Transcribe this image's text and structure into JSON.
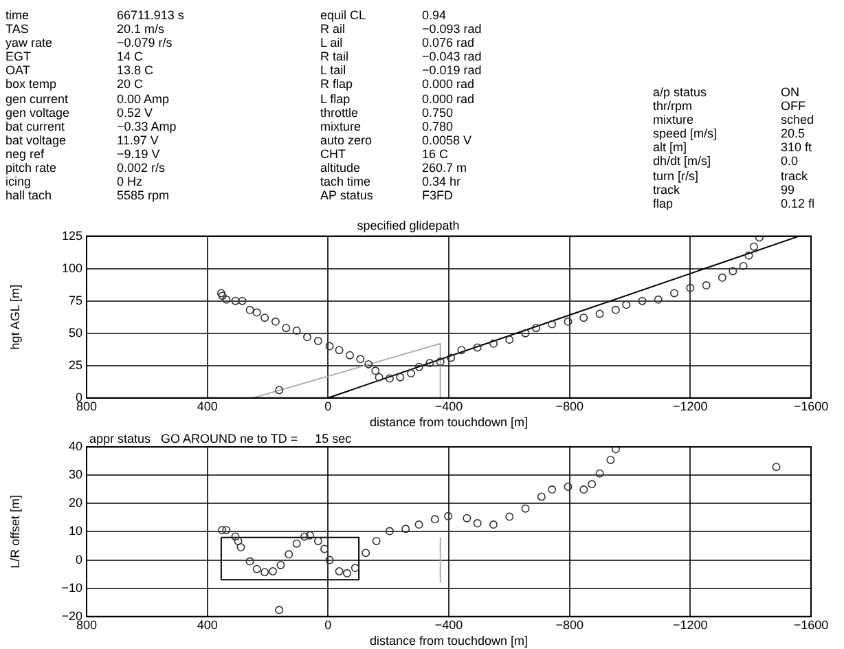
{
  "chart_data": [
    {
      "type": "other",
      "annotations": [
        "time",
        "66711.913 s",
        "TAS",
        "20.1 m/s",
        "yaw rate",
        "−0.079 r/s",
        "EGT",
        "14 C",
        "OAT",
        "13.8 C",
        "box temp",
        "20 C",
        "gen current",
        "0.00 Amp",
        "gen voltage",
        "0.52 V",
        "bat current",
        "−0.33 Amp",
        "bat voltage",
        "11.97 V",
        "neg ref",
        "−9.19 V",
        "pitch rate",
        "0.002 r/s",
        "icing",
        "0 Hz",
        "hall tach",
        "5585 rpm"
      ]
    },
    {
      "type": "other",
      "annotations": [
        "equil CL",
        "0.94",
        "R ail",
        "−0.093 rad",
        "L ail",
        "0.076 rad",
        "R tail",
        "−0.043 rad",
        "L tail",
        "−0.019 rad",
        "R flap",
        "0.000 rad",
        "L flap",
        "0.000 rad",
        "throttle",
        "0.750",
        "mixture",
        "0.780",
        "auto zero",
        "0.0058 V",
        "CHT",
        "16 C",
        "altitude",
        "260.7 m",
        "tach time",
        "0.34 hr",
        "AP status",
        "F3FD"
      ]
    },
    {
      "type": "other",
      "annotations": [
        "a/p status",
        "ON",
        "thr/rpm",
        "OFF",
        "mixture",
        "sched",
        "speed [m/s]",
        "20.5",
        "alt [m]",
        "310 ft",
        "dh/dt [m/s]",
        "0.0",
        "turn [r/s]",
        "track",
        "track",
        "99",
        "flap",
        "0.12 fl"
      ]
    },
    {
      "type": "scatter",
      "title": "specified glidepath",
      "xlabel": "distance from touchdown [m]",
      "ylabel": "hgt AGL [m]",
      "xlim": [
        800,
        -1600
      ],
      "xticks": [
        800,
        400,
        0,
        -400,
        -800,
        -1200,
        -1600
      ],
      "ylim": [
        0,
        125
      ],
      "yticks": [
        0,
        25,
        50,
        75,
        100,
        125
      ],
      "grid": true,
      "legend": false,
      "series": [
        {
          "type": "scatter",
          "marker": "circle",
          "color": "#333333",
          "x": [
            354,
            350,
            337,
            307,
            284,
            259,
            236,
            210,
            174,
            139,
            104,
            69,
            33,
            -5,
            -37,
            -72,
            -107,
            -134,
            -157,
            -169,
            -204,
            -239,
            -275,
            -301,
            -337,
            -372,
            -407,
            -442,
            -495,
            -548,
            -601,
            -654,
            -689,
            -742,
            -795,
            -847,
            -900,
            -953,
            -988,
            -1041,
            -1094,
            -1147,
            -1200,
            -1253,
            -1306,
            -1341,
            -1376,
            -1394,
            -1411,
            -1429,
            162
          ],
          "values": [
            81,
            79,
            76,
            75,
            75,
            68,
            66,
            62,
            59,
            54,
            52,
            47,
            44,
            40,
            37,
            33,
            30,
            26,
            21,
            16,
            15,
            16,
            19,
            24,
            27,
            28,
            31,
            37,
            39,
            42,
            45,
            50,
            54,
            57,
            59,
            62,
            65,
            68,
            72,
            75,
            76,
            81,
            85,
            87,
            93,
            98,
            102,
            110,
            117,
            124,
            6
          ]
        },
        {
          "type": "line",
          "color": "#000000",
          "x": [
            0,
            -1560
          ],
          "values": [
            0,
            125
          ]
        },
        {
          "type": "line",
          "color": "#b0b0b0",
          "x": [
            248,
            -372,
            -372
          ],
          "values": [
            0,
            42,
            0
          ]
        }
      ]
    },
    {
      "type": "scatter",
      "annotations": [
        "appr status   GO AROUND ne to TD =     15 sec"
      ],
      "xlabel": "distance from touchdown [m]",
      "ylabel": "L/R offset [m]",
      "xlim": [
        800,
        -1600
      ],
      "xticks": [
        800,
        400,
        0,
        -400,
        -800,
        -1200,
        -1600
      ],
      "ylim": [
        -20,
        40
      ],
      "yticks": [
        -20,
        -10,
        0,
        10,
        20,
        30,
        40
      ],
      "grid": true,
      "legend": false,
      "series": [
        {
          "type": "scatter",
          "marker": "circle",
          "color": "#333333",
          "x": [
            351,
            337,
            307,
            298,
            289,
            259,
            236,
            210,
            183,
            157,
            130,
            104,
            78,
            60,
            33,
            12,
            -5,
            -37,
            -63,
            -90,
            -125,
            -160,
            -204,
            -257,
            -301,
            -354,
            -398,
            -460,
            -495,
            -548,
            -601,
            -654,
            -707,
            -742,
            -795,
            -847,
            -874,
            -900,
            -936,
            -953,
            162,
            -1485
          ],
          "values": [
            10.6,
            10.6,
            8.3,
            6.7,
            4.5,
            -0.5,
            -3.2,
            -4.3,
            -4,
            -1.8,
            2,
            5.8,
            8.3,
            8.7,
            6.7,
            3.9,
            0,
            -4,
            -4.7,
            -2.8,
            2.5,
            6.7,
            10.2,
            11,
            12.5,
            14.4,
            15.5,
            14.8,
            13,
            12.5,
            15.3,
            18.2,
            22.4,
            24.9,
            25.9,
            24.9,
            26.8,
            30.6,
            35.4,
            39.2,
            -17.7,
            32.9
          ]
        },
        {
          "type": "line",
          "color": "#000000",
          "x": [
            354,
            -102,
            -102
          ],
          "values": [
            8,
            8,
            -7
          ]
        },
        {
          "type": "line",
          "color": "#000000",
          "x": [
            -102,
            354,
            354
          ],
          "values": [
            -7,
            -7,
            8
          ]
        },
        {
          "type": "line",
          "color": "#b0b0b0",
          "x": [
            -372,
            -372
          ],
          "values": [
            -8,
            8
          ]
        }
      ]
    }
  ]
}
